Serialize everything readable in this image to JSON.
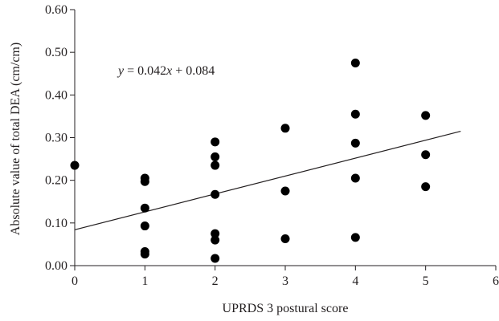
{
  "chart_data": {
    "type": "scatter",
    "xlabel": "UPRDS 3 postural score",
    "ylabel": "Absolute value of total DEA (cm/cm)",
    "xlim": [
      0,
      6
    ],
    "ylim": [
      0,
      0.6
    ],
    "x_ticks": [
      "0",
      "1",
      "2",
      "3",
      "4",
      "5",
      "6"
    ],
    "y_ticks": [
      "0.00",
      "0.10",
      "0.20",
      "0.30",
      "0.40",
      "0.50",
      "0.60"
    ],
    "grid": false,
    "legend": "none",
    "annotation": {
      "prefix": "y",
      "middle": " = 0.042",
      "var": "x",
      "suffix": " + 0.084"
    },
    "trendline": {
      "slope": 0.042,
      "intercept": 0.084,
      "x_range": [
        0,
        5.5
      ]
    },
    "marker_color": "#000000",
    "series": [
      {
        "x": [
          0,
          1,
          1,
          1,
          1,
          1,
          1,
          2,
          2,
          2,
          2,
          2,
          2,
          2,
          3,
          3,
          3,
          4,
          4,
          4,
          4,
          4,
          5,
          5,
          5
        ],
        "y": [
          0.235,
          0.205,
          0.197,
          0.135,
          0.093,
          0.033,
          0.027,
          0.29,
          0.255,
          0.235,
          0.167,
          0.075,
          0.06,
          0.017,
          0.322,
          0.175,
          0.063,
          0.475,
          0.355,
          0.287,
          0.205,
          0.066,
          0.352,
          0.26,
          0.185
        ]
      }
    ]
  }
}
